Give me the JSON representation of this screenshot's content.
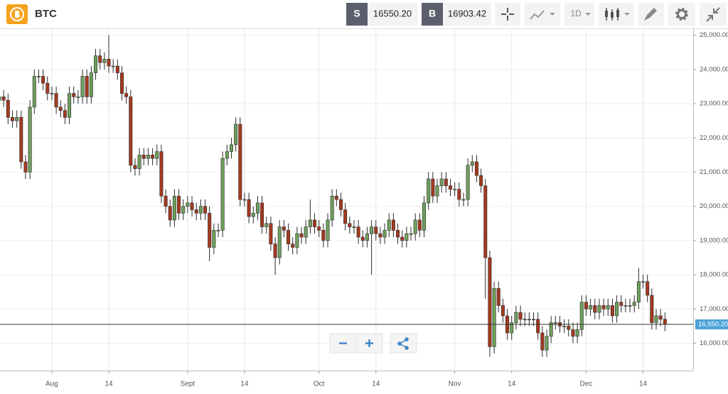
{
  "toolbar": {
    "symbol": "BTC",
    "sell": {
      "label": "S",
      "price": "16550.20"
    },
    "buy": {
      "label": "B",
      "price": "16903.42"
    },
    "interval": "1D"
  },
  "chart_data": {
    "type": "candlestick",
    "up_color": "#6e9f5c",
    "down_color": "#a4391f",
    "grid": true,
    "categories": [
      null,
      null,
      null,
      null,
      null,
      null,
      null,
      null,
      null,
      null,
      null,
      null,
      "Aug",
      null,
      null,
      null,
      null,
      null,
      null,
      null,
      null,
      null,
      null,
      null,
      null,
      "14",
      null,
      null,
      null,
      null,
      null,
      null,
      null,
      null,
      null,
      null,
      null,
      null,
      null,
      null,
      null,
      null,
      null,
      "Sept",
      null,
      null,
      null,
      null,
      null,
      null,
      null,
      null,
      null,
      null,
      null,
      null,
      "14",
      null,
      null,
      null,
      null,
      null,
      null,
      null,
      null,
      null,
      null,
      null,
      null,
      null,
      null,
      null,
      null,
      "Oct",
      null,
      null,
      null,
      null,
      null,
      null,
      null,
      null,
      null,
      null,
      null,
      null,
      "14",
      null,
      null,
      null,
      null,
      null,
      null,
      null,
      null,
      null,
      null,
      null,
      null,
      null,
      null,
      null,
      null,
      null,
      "Nov",
      null,
      null,
      null,
      null,
      null,
      null,
      null,
      null,
      null,
      null,
      null,
      null,
      "14",
      null,
      null,
      null,
      null,
      null,
      null,
      null,
      null,
      null,
      null,
      null,
      null,
      null,
      null,
      null,
      null,
      "Dec",
      null,
      null,
      null,
      null,
      null,
      null,
      null,
      null,
      null,
      null,
      null,
      null,
      "14",
      null,
      null,
      null,
      null,
      null
    ],
    "open": [
      23100,
      23200,
      23100,
      22600,
      22500,
      22600,
      21300,
      21000,
      22900,
      23800,
      23800,
      23600,
      23300,
      23300,
      22900,
      22800,
      22600,
      23300,
      23200,
      23200,
      23800,
      23200,
      23900,
      24400,
      24200,
      24300,
      24100,
      24100,
      23900,
      23300,
      23200,
      21200,
      21100,
      21500,
      21400,
      21500,
      21400,
      21600,
      20300,
      20000,
      19600,
      20300,
      19800,
      20000,
      20100,
      19900,
      19800,
      20000,
      19800,
      18800,
      19300,
      19300,
      21400,
      21600,
      21800,
      22400,
      20200,
      20200,
      19700,
      19800,
      20100,
      19400,
      19500,
      18900,
      18500,
      19400,
      19300,
      18900,
      18800,
      19200,
      19100,
      19400,
      19600,
      19400,
      19300,
      19000,
      19600,
      20300,
      20200,
      19900,
      19500,
      19400,
      19400,
      19100,
      19000,
      19200,
      19400,
      19200,
      19100,
      19300,
      19600,
      19300,
      19100,
      19000,
      19200,
      19200,
      19600,
      19300,
      20100,
      20800,
      20300,
      20600,
      20800,
      20600,
      20500,
      20500,
      20200,
      20200,
      21200,
      21300,
      20900,
      20600,
      18500,
      15900,
      17600,
      17100,
      16800,
      16300,
      16600,
      16900,
      16700,
      16700,
      16700,
      16700,
      16300,
      15800,
      16200,
      16600,
      16600,
      16500,
      16500,
      16400,
      16200,
      16400,
      17200,
      17000,
      17100,
      16900,
      17100,
      17000,
      17100,
      16800,
      17200,
      17100,
      17100,
      17100,
      17200,
      17800,
      17800,
      17400,
      16600,
      16800,
      16700
    ],
    "high": [
      23400,
      23400,
      23300,
      22800,
      22800,
      22800,
      21500,
      23100,
      24000,
      24000,
      24000,
      23800,
      23500,
      23500,
      23100,
      23000,
      23500,
      23500,
      23400,
      24000,
      24000,
      24100,
      24600,
      24600,
      24500,
      25000,
      24300,
      24300,
      24100,
      23500,
      23400,
      21400,
      21700,
      21700,
      21700,
      21700,
      21800,
      21800,
      20500,
      20200,
      20500,
      20500,
      20200,
      20300,
      20300,
      20100,
      20200,
      20200,
      20000,
      19500,
      19500,
      21600,
      21800,
      22000,
      22600,
      22600,
      20400,
      20400,
      20000,
      20300,
      20300,
      19700,
      19700,
      19100,
      19600,
      19600,
      19500,
      19100,
      19400,
      19400,
      19600,
      20200,
      19800,
      19600,
      19500,
      19800,
      20500,
      20500,
      20400,
      20100,
      19700,
      19600,
      19600,
      19300,
      19400,
      19600,
      19600,
      19400,
      19500,
      19800,
      19800,
      19500,
      19300,
      19400,
      19400,
      19800,
      19800,
      20300,
      21000,
      21000,
      20800,
      21000,
      21000,
      20800,
      20700,
      20700,
      20400,
      21400,
      21500,
      21500,
      21100,
      20800,
      18700,
      17800,
      17800,
      17300,
      17000,
      16800,
      17100,
      17100,
      16900,
      16900,
      16900,
      16900,
      16500,
      16400,
      16800,
      16800,
      16800,
      16700,
      16700,
      16600,
      16600,
      17400,
      17400,
      17300,
      17300,
      17300,
      17300,
      17300,
      17300,
      17400,
      17400,
      17300,
      17300,
      17400,
      18200,
      18000,
      18000,
      17600,
      17000,
      17000,
      16900
    ],
    "low": [
      22900,
      22900,
      22400,
      22300,
      22300,
      21100,
      20800,
      20800,
      22700,
      23600,
      23400,
      23100,
      23100,
      22700,
      22600,
      22400,
      22400,
      23000,
      23000,
      23000,
      23000,
      23000,
      23700,
      24000,
      24000,
      23900,
      23900,
      23700,
      23100,
      23000,
      21000,
      20900,
      20900,
      21200,
      21200,
      21200,
      21200,
      20100,
      19800,
      19400,
      19400,
      19600,
      19600,
      19800,
      19700,
      19600,
      19600,
      19600,
      18400,
      18600,
      19100,
      19100,
      21200,
      21400,
      21600,
      20000,
      20000,
      19500,
      19500,
      19600,
      19200,
      19200,
      18700,
      18000,
      18300,
      19100,
      18700,
      18600,
      18600,
      18900,
      18900,
      19200,
      19200,
      19100,
      18800,
      18800,
      19400,
      20000,
      19700,
      19300,
      19200,
      19200,
      18900,
      18800,
      18800,
      18000,
      19000,
      18900,
      18900,
      19100,
      19100,
      18900,
      18800,
      18800,
      19000,
      19000,
      19100,
      19100,
      19900,
      20100,
      20100,
      20400,
      20400,
      20300,
      20300,
      20000,
      20000,
      20000,
      21000,
      20700,
      20400,
      17300,
      15600,
      15700,
      16900,
      16600,
      16100,
      16100,
      16400,
      16500,
      16500,
      16500,
      16500,
      16100,
      15600,
      15600,
      16000,
      16400,
      16300,
      16300,
      16200,
      16000,
      16000,
      16200,
      16800,
      16800,
      16700,
      16700,
      16800,
      16800,
      16600,
      16600,
      16900,
      16900,
      16900,
      16900,
      17000,
      17600,
      17200,
      16400,
      16400,
      16500,
      16350
    ],
    "close": [
      23200,
      23100,
      22600,
      22500,
      22600,
      21300,
      21000,
      22900,
      23800,
      23800,
      23600,
      23300,
      23300,
      22900,
      22800,
      22600,
      23300,
      23200,
      23200,
      23800,
      23200,
      23900,
      24400,
      24200,
      24300,
      24100,
      24100,
      23900,
      23300,
      23200,
      21200,
      21100,
      21500,
      21400,
      21500,
      21400,
      21600,
      20300,
      20000,
      19600,
      20300,
      19800,
      20000,
      20100,
      19900,
      19800,
      20000,
      19800,
      18800,
      19300,
      19300,
      21400,
      21600,
      21800,
      22400,
      20200,
      20200,
      19700,
      19800,
      20100,
      19400,
      19500,
      18900,
      18500,
      19400,
      19300,
      18900,
      18800,
      19200,
      19100,
      19400,
      19600,
      19400,
      19300,
      19000,
      19600,
      20300,
      20200,
      19900,
      19500,
      19400,
      19400,
      19100,
      19000,
      19200,
      19400,
      19200,
      19100,
      19300,
      19600,
      19300,
      19100,
      19000,
      19200,
      19200,
      19600,
      19300,
      20100,
      20800,
      20300,
      20600,
      20800,
      20600,
      20500,
      20500,
      20200,
      20200,
      21200,
      21300,
      20900,
      20600,
      18500,
      15900,
      17600,
      17100,
      16800,
      16300,
      16600,
      16900,
      16700,
      16700,
      16700,
      16700,
      16300,
      15800,
      16200,
      16600,
      16600,
      16500,
      16500,
      16400,
      16200,
      16400,
      17200,
      17000,
      17100,
      16900,
      17100,
      17000,
      17100,
      16800,
      17200,
      17100,
      17100,
      17100,
      17200,
      17800,
      17800,
      17400,
      16600,
      16800,
      16700,
      16550
    ],
    "ylim": [
      15200,
      25200
    ],
    "yticks": [
      {
        "value": 16000,
        "label": "16,000.00"
      },
      {
        "value": 17000,
        "label": "17,000.00"
      },
      {
        "value": 18000,
        "label": "18,000.00"
      },
      {
        "value": 19000,
        "label": "19,000.00"
      },
      {
        "value": 20000,
        "label": "20,000.00"
      },
      {
        "value": 21000,
        "label": "21,000.00"
      },
      {
        "value": 22000,
        "label": "22,000.00"
      },
      {
        "value": 23000,
        "label": "23,000.00"
      },
      {
        "value": 24000,
        "label": "24,000.00"
      },
      {
        "value": 25000,
        "label": "25,000.00"
      }
    ],
    "last_price": {
      "value": 16550.2,
      "label": "16,550.20"
    }
  }
}
